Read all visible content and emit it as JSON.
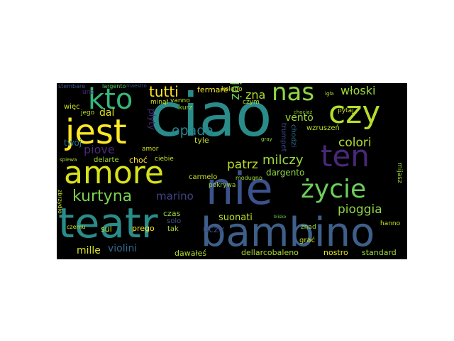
{
  "figure": {
    "background": "#000000",
    "colormap": "viridis"
  },
  "words": [
    {
      "text": "ciao",
      "color": "#2a8c8a"
    },
    {
      "text": "teatr",
      "color": "#2a8c8a"
    },
    {
      "text": "bambino",
      "color": "#3e5f8a"
    },
    {
      "text": "nie",
      "color": "#3b528b"
    },
    {
      "text": "amore",
      "color": "#d8e219"
    },
    {
      "text": "jest",
      "color": "#fde725"
    },
    {
      "text": "kto",
      "color": "#35b779"
    },
    {
      "text": "nas",
      "color": "#90d743"
    },
    {
      "text": "czy",
      "color": "#b5de2b"
    },
    {
      "text": "ten",
      "color": "#482878"
    },
    {
      "text": "życie",
      "color": "#6ccd5a"
    },
    {
      "text": "kurtyna",
      "color": "#7ad151"
    },
    {
      "text": "tutti",
      "color": "#fde725"
    },
    {
      "text": "włoski",
      "color": "#a0da39"
    },
    {
      "text": "colori",
      "color": "#b5de2b"
    },
    {
      "text": "pioggia",
      "color": "#90d743"
    },
    {
      "text": "opada",
      "color": "#26828e"
    },
    {
      "text": "patrz",
      "color": "#bddf26"
    },
    {
      "text": "milczy",
      "color": "#9bd93c"
    },
    {
      "text": "piove",
      "color": "#482878"
    },
    {
      "text": "marino",
      "color": "#414487"
    },
    {
      "text": "dal",
      "color": "#dfe318"
    },
    {
      "text": "zna",
      "color": "#addc30"
    },
    {
      "text": "vento",
      "color": "#a0da39"
    },
    {
      "text": "już",
      "color": "#6ccd5a"
    },
    {
      "text": "fermare",
      "color": "#fde725"
    },
    {
      "text": "dargento",
      "color": "#8fd744"
    },
    {
      "text": "violini",
      "color": "#31688e"
    },
    {
      "text": "mille",
      "color": "#d8e219"
    },
    {
      "text": "suonati",
      "color": "#bddf26"
    },
    {
      "text": "czas",
      "color": "#9bd93c"
    },
    {
      "text": "dellarcobaleno",
      "color": "#addc30"
    },
    {
      "text": "nostro",
      "color": "#e5e419"
    },
    {
      "text": "standard",
      "color": "#a0da39"
    },
    {
      "text": "uczy",
      "color": "#3e4a89"
    },
    {
      "text": "twój",
      "color": "#2c728e"
    },
    {
      "text": "sul",
      "color": "#d2e21b"
    },
    {
      "text": "dawałeś",
      "color": "#b5de2b"
    },
    {
      "text": "prego",
      "color": "#fde725"
    },
    {
      "text": "tak",
      "color": "#a5db36"
    },
    {
      "text": "carmelo",
      "color": "#c8e020"
    },
    {
      "text": "pokrywa",
      "color": "#9fda3a"
    },
    {
      "text": "modugno",
      "color": "#a5db36"
    },
    {
      "text": "tyle",
      "color": "#c2df23"
    },
    {
      "text": "ciebie",
      "color": "#c8e020"
    },
    {
      "text": "choć",
      "color": "#fde725"
    },
    {
      "text": "delarte",
      "color": "#a5db36"
    },
    {
      "text": "amor",
      "color": "#d2e21b"
    },
    {
      "text": "kurz",
      "color": "#9bd93c"
    },
    {
      "text": "minął",
      "color": "#d2e21b"
    },
    {
      "text": "vanno",
      "color": "#bddf26"
    },
    {
      "text": "jego",
      "color": "#bddf26"
    },
    {
      "text": "więc",
      "color": "#c8e020"
    },
    {
      "text": "kolego",
      "color": "#c8e020"
    },
    {
      "text": "czym",
      "color": "#addc30"
    },
    {
      "text": "wzruszeń",
      "color": "#b5de2b"
    },
    {
      "text": "pytaj",
      "color": "#c8e020"
    },
    {
      "text": "grać",
      "color": "#c8e020"
    },
    {
      "text": "znad",
      "color": "#9bd93c"
    },
    {
      "text": "hanno",
      "color": "#c8e020"
    },
    {
      "text": "czemu",
      "color": "#c8e020"
    },
    {
      "text": "largento",
      "color": "#5ec962"
    },
    {
      "text": "stembare",
      "color": "#3b528b"
    },
    {
      "text": "una",
      "color": "#472d7b"
    },
    {
      "text": "płyty",
      "color": "#482878"
    },
    {
      "text": "solo",
      "color": "#3b528b"
    },
    {
      "text": "spiewa",
      "color": "#addc30"
    },
    {
      "text": "mijasz",
      "color": "#a5db36"
    },
    {
      "text": "igła",
      "color": "#addc30"
    },
    {
      "text": "trumpet",
      "color": "#3e4a89"
    },
    {
      "text": "chodzi",
      "color": "#31688e"
    },
    {
      "text": "zbrzydło",
      "color": "#c8e020"
    },
    {
      "text": "maestro",
      "color": "#3b528b"
    },
    {
      "text": "chociaż",
      "color": "#9bd93c"
    },
    {
      "text": "gray",
      "color": "#9bd93c"
    },
    {
      "text": "blisko",
      "color": "#6ccd5a"
    }
  ]
}
